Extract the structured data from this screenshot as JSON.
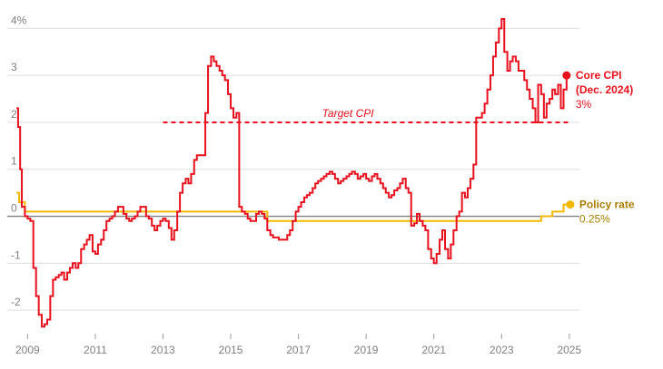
{
  "chart_data": {
    "type": "line",
    "xlim": [
      2008.4,
      2025.3
    ],
    "ylim": [
      -2.5,
      4.2
    ],
    "grid": true,
    "x_ticks": [
      {
        "value": 2009,
        "label": "2009"
      },
      {
        "value": 2011,
        "label": "2011"
      },
      {
        "value": 2013,
        "label": "2013"
      },
      {
        "value": 2015,
        "label": "2015"
      },
      {
        "value": 2017,
        "label": "2017"
      },
      {
        "value": 2019,
        "label": "2019"
      },
      {
        "value": 2021,
        "label": "2021"
      },
      {
        "value": 2023,
        "label": "2023"
      },
      {
        "value": 2025,
        "label": "2025"
      }
    ],
    "y_ticks": [
      {
        "value": 4,
        "label": "4%"
      },
      {
        "value": 3,
        "label": "3"
      },
      {
        "value": 2,
        "label": "2"
      },
      {
        "value": 1,
        "label": "1"
      },
      {
        "value": 0,
        "label": "0"
      },
      {
        "value": -1,
        "label": "-1"
      },
      {
        "value": -2,
        "label": "-2"
      }
    ],
    "series": [
      {
        "name": "Core CPI",
        "color": "#e8101c",
        "step": true,
        "points": [
          [
            2008.67,
            2.3
          ],
          [
            2008.72,
            1.9
          ],
          [
            2008.78,
            1.0
          ],
          [
            2008.83,
            0.2
          ],
          [
            2008.92,
            0.0
          ],
          [
            2009.0,
            -0.05
          ],
          [
            2009.08,
            -0.1
          ],
          [
            2009.17,
            -1.1
          ],
          [
            2009.25,
            -1.7
          ],
          [
            2009.33,
            -2.1
          ],
          [
            2009.42,
            -2.35
          ],
          [
            2009.5,
            -2.3
          ],
          [
            2009.58,
            -2.2
          ],
          [
            2009.67,
            -1.7
          ],
          [
            2009.75,
            -1.35
          ],
          [
            2009.83,
            -1.3
          ],
          [
            2009.92,
            -1.25
          ],
          [
            2010.0,
            -1.2
          ],
          [
            2010.08,
            -1.35
          ],
          [
            2010.17,
            -1.2
          ],
          [
            2010.25,
            -1.1
          ],
          [
            2010.33,
            -1.0
          ],
          [
            2010.42,
            -1.1
          ],
          [
            2010.5,
            -1.0
          ],
          [
            2010.58,
            -0.7
          ],
          [
            2010.67,
            -0.6
          ],
          [
            2010.75,
            -0.5
          ],
          [
            2010.83,
            -0.4
          ],
          [
            2010.92,
            -0.75
          ],
          [
            2011.0,
            -0.8
          ],
          [
            2011.08,
            -0.6
          ],
          [
            2011.17,
            -0.5
          ],
          [
            2011.25,
            -0.3
          ],
          [
            2011.33,
            -0.1
          ],
          [
            2011.42,
            -0.05
          ],
          [
            2011.5,
            0.0
          ],
          [
            2011.58,
            0.1
          ],
          [
            2011.67,
            0.2
          ],
          [
            2011.75,
            0.2
          ],
          [
            2011.83,
            0.05
          ],
          [
            2011.92,
            -0.05
          ],
          [
            2012.0,
            -0.1
          ],
          [
            2012.08,
            -0.05
          ],
          [
            2012.17,
            0.0
          ],
          [
            2012.25,
            0.1
          ],
          [
            2012.33,
            0.2
          ],
          [
            2012.42,
            0.2
          ],
          [
            2012.5,
            0.0
          ],
          [
            2012.58,
            -0.05
          ],
          [
            2012.67,
            -0.2
          ],
          [
            2012.75,
            -0.3
          ],
          [
            2012.83,
            -0.2
          ],
          [
            2012.92,
            -0.1
          ],
          [
            2013.0,
            -0.05
          ],
          [
            2013.08,
            -0.1
          ],
          [
            2013.17,
            -0.25
          ],
          [
            2013.25,
            -0.5
          ],
          [
            2013.33,
            -0.3
          ],
          [
            2013.42,
            0.1
          ],
          [
            2013.5,
            0.5
          ],
          [
            2013.58,
            0.7
          ],
          [
            2013.67,
            0.8
          ],
          [
            2013.75,
            0.7
          ],
          [
            2013.83,
            0.9
          ],
          [
            2013.92,
            1.2
          ],
          [
            2014.0,
            1.3
          ],
          [
            2014.08,
            1.3
          ],
          [
            2014.17,
            1.3
          ],
          [
            2014.25,
            2.2
          ],
          [
            2014.33,
            3.2
          ],
          [
            2014.42,
            3.4
          ],
          [
            2014.5,
            3.3
          ],
          [
            2014.58,
            3.2
          ],
          [
            2014.67,
            3.1
          ],
          [
            2014.75,
            3.0
          ],
          [
            2014.83,
            2.9
          ],
          [
            2014.92,
            2.6
          ],
          [
            2015.0,
            2.3
          ],
          [
            2015.08,
            2.1
          ],
          [
            2015.17,
            2.2
          ],
          [
            2015.25,
            0.2
          ],
          [
            2015.33,
            0.1
          ],
          [
            2015.42,
            0.05
          ],
          [
            2015.5,
            -0.05
          ],
          [
            2015.58,
            -0.1
          ],
          [
            2015.67,
            -0.1
          ],
          [
            2015.75,
            0.05
          ],
          [
            2015.83,
            0.1
          ],
          [
            2015.92,
            0.05
          ],
          [
            2016.0,
            -0.05
          ],
          [
            2016.08,
            -0.3
          ],
          [
            2016.17,
            -0.4
          ],
          [
            2016.25,
            -0.45
          ],
          [
            2016.33,
            -0.45
          ],
          [
            2016.42,
            -0.5
          ],
          [
            2016.5,
            -0.5
          ],
          [
            2016.58,
            -0.5
          ],
          [
            2016.67,
            -0.4
          ],
          [
            2016.75,
            -0.3
          ],
          [
            2016.83,
            -0.1
          ],
          [
            2016.92,
            0.1
          ],
          [
            2017.0,
            0.2
          ],
          [
            2017.08,
            0.3
          ],
          [
            2017.17,
            0.4
          ],
          [
            2017.25,
            0.45
          ],
          [
            2017.33,
            0.5
          ],
          [
            2017.42,
            0.6
          ],
          [
            2017.5,
            0.7
          ],
          [
            2017.58,
            0.75
          ],
          [
            2017.67,
            0.8
          ],
          [
            2017.75,
            0.85
          ],
          [
            2017.83,
            0.9
          ],
          [
            2017.92,
            0.95
          ],
          [
            2018.0,
            0.9
          ],
          [
            2018.08,
            0.8
          ],
          [
            2018.17,
            0.7
          ],
          [
            2018.25,
            0.75
          ],
          [
            2018.33,
            0.8
          ],
          [
            2018.42,
            0.85
          ],
          [
            2018.5,
            0.9
          ],
          [
            2018.58,
            0.95
          ],
          [
            2018.67,
            0.9
          ],
          [
            2018.75,
            0.8
          ],
          [
            2018.83,
            0.85
          ],
          [
            2018.92,
            0.9
          ],
          [
            2019.0,
            0.8
          ],
          [
            2019.08,
            0.75
          ],
          [
            2019.17,
            0.85
          ],
          [
            2019.25,
            0.9
          ],
          [
            2019.33,
            0.8
          ],
          [
            2019.42,
            0.7
          ],
          [
            2019.5,
            0.6
          ],
          [
            2019.58,
            0.5
          ],
          [
            2019.67,
            0.4
          ],
          [
            2019.75,
            0.45
          ],
          [
            2019.83,
            0.55
          ],
          [
            2019.92,
            0.6
          ],
          [
            2020.0,
            0.7
          ],
          [
            2020.08,
            0.8
          ],
          [
            2020.17,
            0.6
          ],
          [
            2020.25,
            0.5
          ],
          [
            2020.33,
            -0.2
          ],
          [
            2020.42,
            -0.15
          ],
          [
            2020.5,
            0.05
          ],
          [
            2020.58,
            -0.1
          ],
          [
            2020.67,
            -0.2
          ],
          [
            2020.75,
            -0.3
          ],
          [
            2020.83,
            -0.7
          ],
          [
            2020.92,
            -0.9
          ],
          [
            2021.0,
            -1.0
          ],
          [
            2021.08,
            -0.8
          ],
          [
            2021.17,
            -0.5
          ],
          [
            2021.25,
            -0.3
          ],
          [
            2021.33,
            -0.7
          ],
          [
            2021.42,
            -0.9
          ],
          [
            2021.5,
            -0.6
          ],
          [
            2021.58,
            -0.3
          ],
          [
            2021.67,
            0.0
          ],
          [
            2021.75,
            0.1
          ],
          [
            2021.83,
            0.5
          ],
          [
            2021.92,
            0.4
          ],
          [
            2022.0,
            0.6
          ],
          [
            2022.08,
            0.8
          ],
          [
            2022.17,
            1.1
          ],
          [
            2022.25,
            2.1
          ],
          [
            2022.33,
            2.1
          ],
          [
            2022.42,
            2.2
          ],
          [
            2022.5,
            2.4
          ],
          [
            2022.58,
            2.7
          ],
          [
            2022.67,
            3.0
          ],
          [
            2022.75,
            3.4
          ],
          [
            2022.83,
            3.7
          ],
          [
            2022.92,
            4.0
          ],
          [
            2023.0,
            4.2
          ],
          [
            2023.08,
            3.5
          ],
          [
            2023.17,
            3.1
          ],
          [
            2023.25,
            3.3
          ],
          [
            2023.33,
            3.4
          ],
          [
            2023.42,
            3.3
          ],
          [
            2023.5,
            3.1
          ],
          [
            2023.58,
            3.1
          ],
          [
            2023.67,
            2.9
          ],
          [
            2023.75,
            2.7
          ],
          [
            2023.83,
            2.5
          ],
          [
            2023.92,
            2.3
          ],
          [
            2024.0,
            2.0
          ],
          [
            2024.08,
            2.8
          ],
          [
            2024.17,
            2.6
          ],
          [
            2024.25,
            2.1
          ],
          [
            2024.33,
            2.4
          ],
          [
            2024.42,
            2.5
          ],
          [
            2024.5,
            2.7
          ],
          [
            2024.58,
            2.6
          ],
          [
            2024.67,
            2.8
          ],
          [
            2024.75,
            2.3
          ],
          [
            2024.83,
            2.7
          ],
          [
            2024.92,
            3.0
          ]
        ]
      },
      {
        "name": "Policy rate",
        "color": "#f5b800",
        "step": true,
        "points": [
          [
            2008.67,
            0.5
          ],
          [
            2008.75,
            0.3
          ],
          [
            2008.92,
            0.1
          ],
          [
            2016.08,
            -0.1
          ],
          [
            2024.17,
            0.0
          ],
          [
            2024.5,
            0.1
          ],
          [
            2024.83,
            0.25
          ],
          [
            2024.92,
            0.25
          ]
        ]
      }
    ],
    "reference_line": {
      "label": "Target CPI",
      "value": 2,
      "x_start": 2013,
      "x_end": 2025,
      "color": "#e8101c"
    },
    "end_labels": [
      {
        "series": "Core CPI",
        "lines": [
          "Core CPI",
          "(Dec. 2024)"
        ],
        "value_label": "3%"
      },
      {
        "series": "Policy rate",
        "lines": [
          "Policy rate"
        ],
        "value_label": "0.25%"
      }
    ]
  },
  "colors": {
    "grid": "#dedede",
    "zero": "#808080",
    "tick_text": "#808080",
    "cpi": "#e8101c",
    "policy": "#f5b800",
    "policy_label": "#a97d00"
  }
}
